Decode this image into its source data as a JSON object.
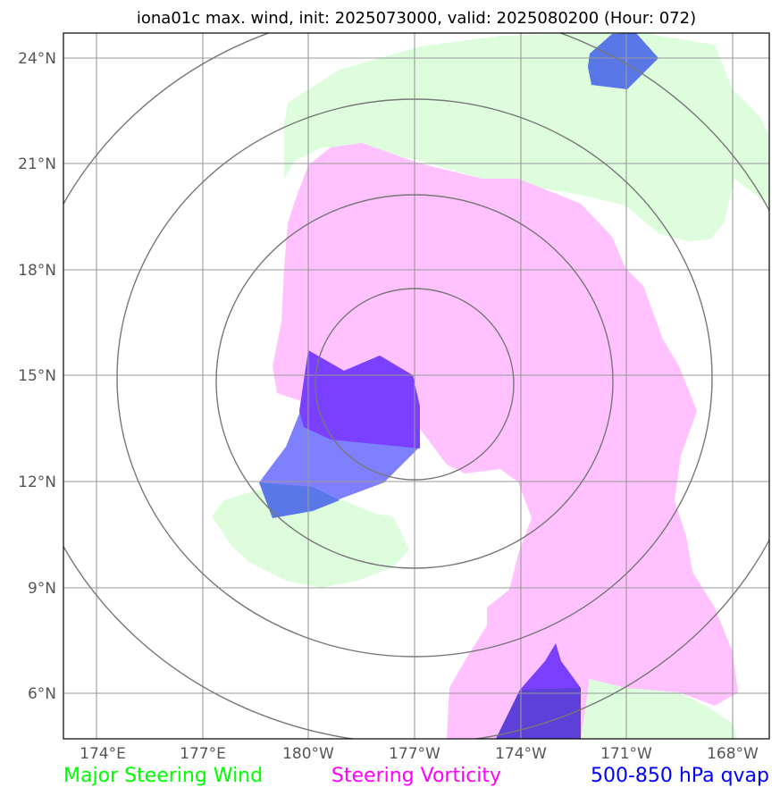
{
  "title": "iona01c max. wind, init: 2025073000, valid: 2025080200 (Hour: 072)",
  "lat_labels": [
    "24°N",
    "21°N",
    "18°N",
    "15°N",
    "12°N",
    "9°N",
    "6°N"
  ],
  "lon_labels": [
    "174°E",
    "177°E",
    "180°W",
    "177°W",
    "174°W",
    "171°W",
    "168°W"
  ],
  "legend": {
    "wind": "Major Steering Wind",
    "vorticity": "Steering Vorticity",
    "qvap": "500-850 hPa qvap"
  },
  "colors": {
    "wind": "#00ff00",
    "vorticity": "#ff00ff",
    "qvap": "#0000ff",
    "wind_fill": "#ddfddd",
    "vorticity_fill": "#ffbfff",
    "qvap_fill": "#7f80ff"
  }
}
